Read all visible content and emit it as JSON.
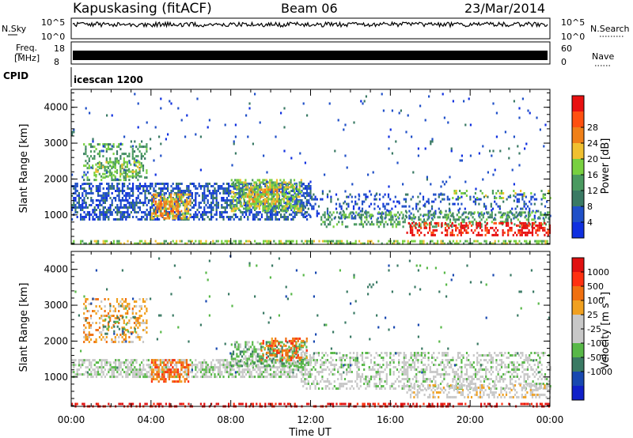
{
  "header": {
    "station": "Kapuskasing (fitACF)",
    "beam": "Beam 06",
    "date": "23/Mar/2014"
  },
  "noise_panel": {
    "left_label": "N.Sky",
    "right_label": "N.Search",
    "tick_top": "10^5",
    "tick_bottom": "10^0"
  },
  "freq_panel": {
    "left_label_1": "Freq.",
    "left_label_2": "[MHz]",
    "right_label": "Nave",
    "left_tick_top": "18",
    "left_tick_bottom": "8",
    "right_tick_top": "60",
    "right_tick_bottom": "0"
  },
  "cpid_panel": {
    "label": "CPID",
    "value": "icescan 1200"
  },
  "colors": {
    "power_scale": [
      "#1030e0",
      "#2050c8",
      "#3a7a64",
      "#4a9a60",
      "#78d040",
      "#f0c030",
      "#f08018",
      "#ff5010",
      "#e81010"
    ],
    "velocity_scale": [
      "#1020c8",
      "#1848b0",
      "#3a7a64",
      "#58b848",
      "#c8c8c8",
      "#c8c8c8",
      "#f0a020",
      "#f07010",
      "#ff3010",
      "#e01010"
    ],
    "noise_trace": "#000000"
  },
  "chart_data": [
    {
      "type": "heatmap",
      "name": "power-panel",
      "xlabel": "",
      "ylabel": "Slant Range [km]",
      "x_range_hours": [
        0,
        24
      ],
      "ylim": [
        180,
        4500
      ],
      "y_ticks": [
        "1000",
        "2000",
        "3000",
        "4000"
      ],
      "x_ticks": [
        "00:00",
        "04:00",
        "08:00",
        "12:00",
        "16:00",
        "20:00",
        "00:00"
      ],
      "colorbar_label": "Power [dB]",
      "colorbar_ticks": [
        "4",
        "8",
        "12",
        "16",
        "20",
        "24",
        "28"
      ],
      "regions": [
        {
          "t0": 0.0,
          "t1": 12.0,
          "r0": 900,
          "r1": 1900,
          "level": 1,
          "density": 0.55
        },
        {
          "t0": 0.6,
          "t1": 3.8,
          "r0": 2000,
          "r1": 3000,
          "level": 3,
          "density": 0.3
        },
        {
          "t0": 1.2,
          "t1": 3.5,
          "r0": 2100,
          "r1": 2500,
          "level": 4,
          "density": 0.35
        },
        {
          "t0": 4.0,
          "t1": 6.0,
          "r0": 900,
          "r1": 1600,
          "level": 5,
          "density": 0.55
        },
        {
          "t0": 4.2,
          "t1": 5.4,
          "r0": 1000,
          "r1": 1400,
          "level": 6,
          "density": 0.5
        },
        {
          "t0": 8.0,
          "t1": 11.5,
          "r0": 1100,
          "r1": 2000,
          "level": 4,
          "density": 0.55
        },
        {
          "t0": 8.8,
          "t1": 10.5,
          "r0": 1300,
          "r1": 1800,
          "level": 5,
          "density": 0.45
        },
        {
          "t0": 11.5,
          "t1": 24.0,
          "r0": 900,
          "r1": 1600,
          "level": 1,
          "density": 0.22
        },
        {
          "t0": 12.5,
          "t1": 24.0,
          "r0": 700,
          "r1": 1100,
          "level": 3,
          "density": 0.35
        },
        {
          "t0": 16.8,
          "t1": 24.0,
          "r0": 450,
          "r1": 800,
          "level": 8,
          "density": 0.45
        },
        {
          "t0": 19.0,
          "t1": 24.0,
          "r0": 1500,
          "r1": 1700,
          "level": 4,
          "density": 0.2
        },
        {
          "t0": 0.0,
          "t1": 24.0,
          "r0": 1100,
          "r1": 4400,
          "level": 1,
          "density": 0.015
        },
        {
          "t0": 0.0,
          "t1": 24.0,
          "r0": 200,
          "r1": 300,
          "level": 4,
          "density": 0.5
        }
      ]
    },
    {
      "type": "heatmap",
      "name": "velocity-panel",
      "xlabel": "Time UT",
      "ylabel": "Slant Range [km]",
      "x_range_hours": [
        0,
        24
      ],
      "ylim": [
        180,
        4500
      ],
      "y_ticks": [
        "1000",
        "2000",
        "3000",
        "4000"
      ],
      "x_ticks": [
        "00:00",
        "04:00",
        "08:00",
        "12:00",
        "16:00",
        "20:00",
        "00:00"
      ],
      "colorbar_label": "Velocity [m s^-1]",
      "colorbar_ticks": [
        "1000",
        "500",
        "100",
        "25",
        "-25",
        "-100",
        "-500",
        "-1000"
      ],
      "regions": [
        {
          "t0": 0.0,
          "t1": 12.0,
          "r0": 1000,
          "r1": 1500,
          "level": 4,
          "density": 0.6
        },
        {
          "t0": 0.6,
          "t1": 3.8,
          "r0": 2000,
          "r1": 3200,
          "level": 6,
          "density": 0.3
        },
        {
          "t0": 1.5,
          "t1": 3.2,
          "r0": 2200,
          "r1": 2700,
          "level": 2,
          "density": 0.2
        },
        {
          "t0": 4.0,
          "t1": 6.0,
          "r0": 900,
          "r1": 1500,
          "level": 7,
          "density": 0.55
        },
        {
          "t0": 8.0,
          "t1": 11.8,
          "r0": 1300,
          "r1": 2000,
          "level": 3,
          "density": 0.55
        },
        {
          "t0": 9.5,
          "t1": 11.8,
          "r0": 1500,
          "r1": 2100,
          "level": 7,
          "density": 0.35
        },
        {
          "t0": 11.5,
          "t1": 24.0,
          "r0": 700,
          "r1": 1700,
          "level": 4,
          "density": 0.4
        },
        {
          "t0": 16.8,
          "t1": 24.0,
          "r0": 450,
          "r1": 800,
          "level": 5,
          "density": 0.4
        },
        {
          "t0": 0.0,
          "t1": 24.0,
          "r0": 1100,
          "r1": 4400,
          "level": 2,
          "density": 0.012
        },
        {
          "t0": 0.0,
          "t1": 24.0,
          "r0": 200,
          "r1": 280,
          "level": 9,
          "density": 0.35
        }
      ]
    }
  ]
}
